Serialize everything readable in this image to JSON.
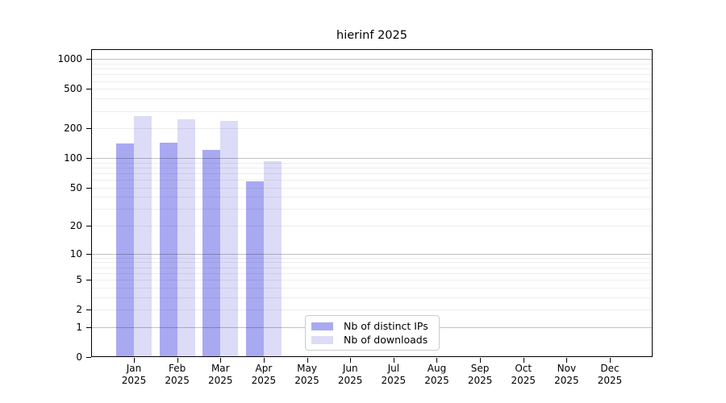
{
  "chart_data": {
    "type": "bar",
    "title": "hierinf 2025",
    "x_tick_months": [
      "Jan",
      "Feb",
      "Mar",
      "Apr",
      "May",
      "Jun",
      "Jul",
      "Aug",
      "Sep",
      "Oct",
      "Nov",
      "Dec"
    ],
    "x_tick_year": "2025",
    "series": [
      {
        "name": "Nb of distinct IPs",
        "color": "#a9a9f2",
        "values": [
          141,
          143,
          120,
          58,
          0,
          0,
          0,
          0,
          0,
          0,
          0,
          0
        ]
      },
      {
        "name": "Nb of downloads",
        "color": "#dcdcf8",
        "values": [
          267,
          245,
          240,
          93,
          0,
          0,
          0,
          0,
          0,
          0,
          0,
          0
        ]
      }
    ],
    "yticks": [
      0,
      1,
      2,
      5,
      10,
      20,
      50,
      100,
      200,
      500,
      1000
    ],
    "yscale": "log10(value+1)",
    "ylim": [
      0,
      1275
    ],
    "xlabel": "",
    "ylabel": "",
    "grid": "horizontal, minor and major lines",
    "legend_position": "lower center",
    "colors": {
      "major_grid": "rgba(0,0,0,0.24)",
      "minor_grid": "rgba(0,0,0,0.07)",
      "axis": "#000000",
      "background": "#ffffff"
    }
  }
}
